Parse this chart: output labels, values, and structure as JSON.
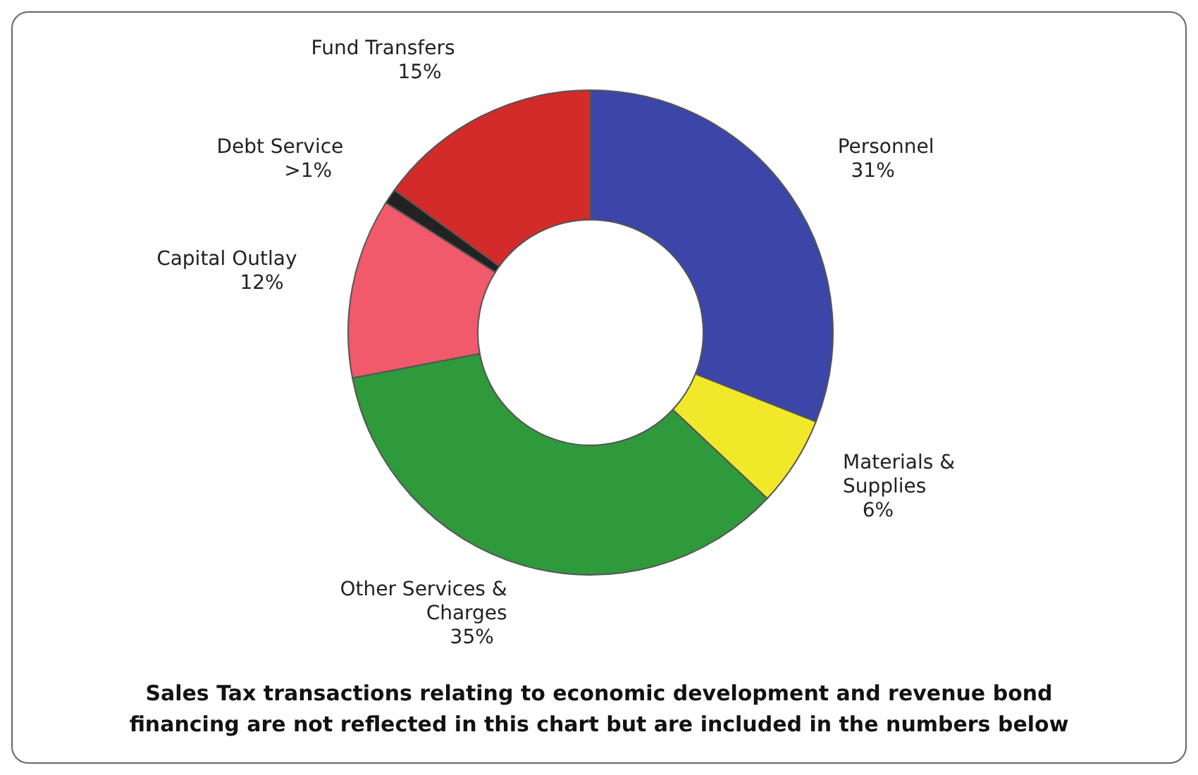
{
  "chart_data": {
    "type": "donut",
    "categories": [
      "Personnel",
      "Materials & Supplies",
      "Other Services & Charges",
      "Capital Outlay",
      "Debt Service",
      "Fund Transfers"
    ],
    "values": [
      31,
      6,
      35,
      12,
      1,
      15
    ],
    "colors": [
      "#3b46a8",
      "#f2e82a",
      "#2e9a3c",
      "#f05a6a",
      "#222222",
      "#d32a2a"
    ],
    "value_labels": [
      "31%",
      "6%",
      "35%",
      "12%",
      ">1%",
      "15%"
    ],
    "legend": false,
    "annotations": [
      "Sales Tax transactions relating to economic development and revenue bond financing are not reflected in this chart but are included in the numbers below"
    ]
  }
}
